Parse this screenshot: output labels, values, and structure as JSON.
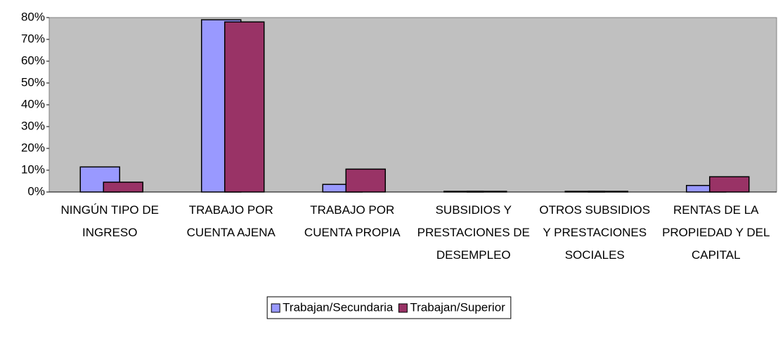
{
  "chart_data": {
    "type": "bar",
    "categories": [
      "NINGÚN TIPO DE INGRESO",
      "TRABAJO POR CUENTA AJENA",
      "TRABAJO POR CUENTA PROPIA",
      "SUBSIDIOS Y PRESTACIONES DE DESEMPLEO",
      "OTROS SUBSIDIOS Y PRESTACIONES SOCIALES",
      "RENTAS DE LA PROPIEDAD Y DEL CAPITAL"
    ],
    "series": [
      {
        "name": "Trabajan/Secundaria",
        "color": "#9999ff",
        "values": [
          11.5,
          79,
          3.5,
          0.3,
          0.3,
          3
        ]
      },
      {
        "name": "Trabajan/Superior",
        "color": "#993366",
        "values": [
          4.5,
          78,
          10.5,
          0.3,
          0.3,
          7
        ]
      }
    ],
    "ylim": [
      0,
      80
    ],
    "yticks": [
      {
        "value": 0,
        "label": "0%"
      },
      {
        "value": 10,
        "label": "10%"
      },
      {
        "value": 20,
        "label": "20%"
      },
      {
        "value": 30,
        "label": "30%"
      },
      {
        "value": 40,
        "label": "40%"
      },
      {
        "value": 50,
        "label": "50%"
      },
      {
        "value": 60,
        "label": "60%"
      },
      {
        "value": 70,
        "label": "70%"
      },
      {
        "value": 80,
        "label": "80%"
      }
    ],
    "legend": "bottom",
    "background": "#c0c0c0"
  }
}
